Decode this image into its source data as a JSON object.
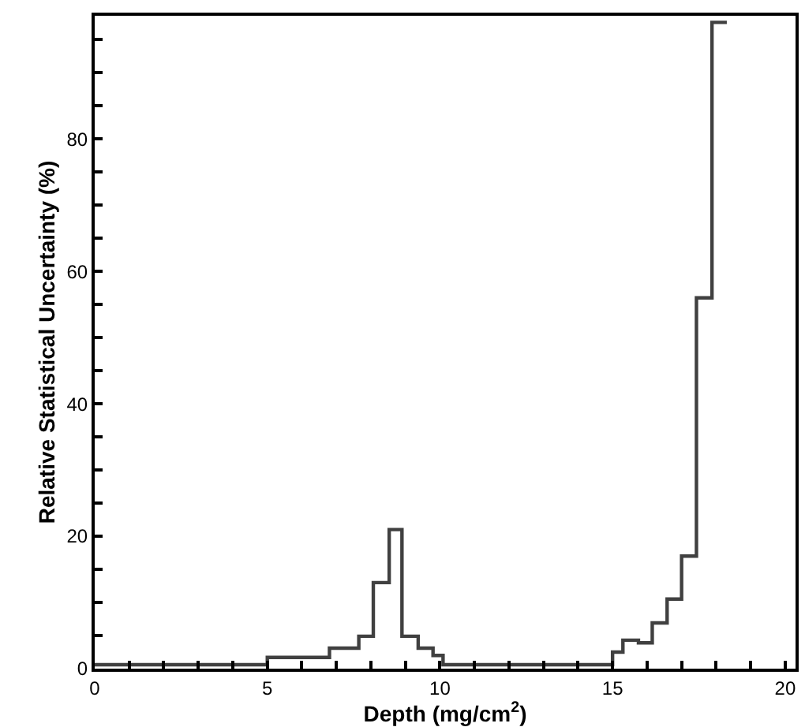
{
  "chart_data": {
    "type": "histogram",
    "xlabel": "Depth (mg/cm$^{2}$)",
    "ylabel": "Relative Statistical Uncertainty (%)",
    "bins": [
      0,
      5,
      6.8,
      7.65,
      8.07,
      8.53,
      8.9,
      9.37,
      9.8,
      10.09,
      15,
      15.3,
      15.75,
      16.15,
      16.58,
      17.0,
      17.43,
      17.88,
      18.31
    ],
    "values": [
      0.6,
      1.7,
      3.1,
      4.9,
      13,
      21,
      4.9,
      3.1,
      2,
      0.6,
      2.5,
      4.3,
      3.9,
      6.9,
      10.5,
      17,
      56,
      97.6
    ],
    "color": "#404040",
    "xlim": [
      0,
      20.3
    ],
    "ylim": [
      0,
      98.6
    ],
    "xticks": [
      0,
      {
        "value": 1,
        "label": null
      },
      {
        "value": 2,
        "label": null
      },
      {
        "value": 3,
        "label": null
      },
      {
        "value": 4,
        "label": null
      },
      5,
      {
        "value": 6,
        "label": null
      },
      {
        "value": 7,
        "label": null
      },
      {
        "value": 8,
        "label": null
      },
      {
        "value": 9,
        "label": null
      },
      10,
      {
        "value": 11,
        "label": null
      },
      {
        "value": 12,
        "label": null
      },
      {
        "value": 13,
        "label": null
      },
      {
        "value": 14,
        "label": null
      },
      15,
      {
        "value": 16,
        "label": null
      },
      {
        "value": 17,
        "label": null
      },
      {
        "value": 18,
        "label": null
      },
      {
        "value": 19,
        "label": null
      },
      20
    ],
    "yticks": [
      0,
      {
        "value": 5,
        "label": null
      },
      {
        "value": 10,
        "label": null
      },
      {
        "value": 15,
        "label": null
      },
      20,
      {
        "value": 25,
        "label": null
      },
      {
        "value": 30,
        "label": null
      },
      {
        "value": 35,
        "label": null
      },
      40,
      {
        "value": 45,
        "label": null
      },
      {
        "value": 50,
        "label": null
      },
      {
        "value": 55,
        "label": null
      },
      60,
      {
        "value": 65,
        "label": null
      },
      {
        "value": 70,
        "label": null
      },
      {
        "value": 75,
        "label": null
      },
      80,
      {
        "value": 85,
        "label": null
      },
      {
        "value": 90,
        "label": null
      },
      {
        "value": 95,
        "label": null
      }
    ],
    "line_style": "solid"
  }
}
